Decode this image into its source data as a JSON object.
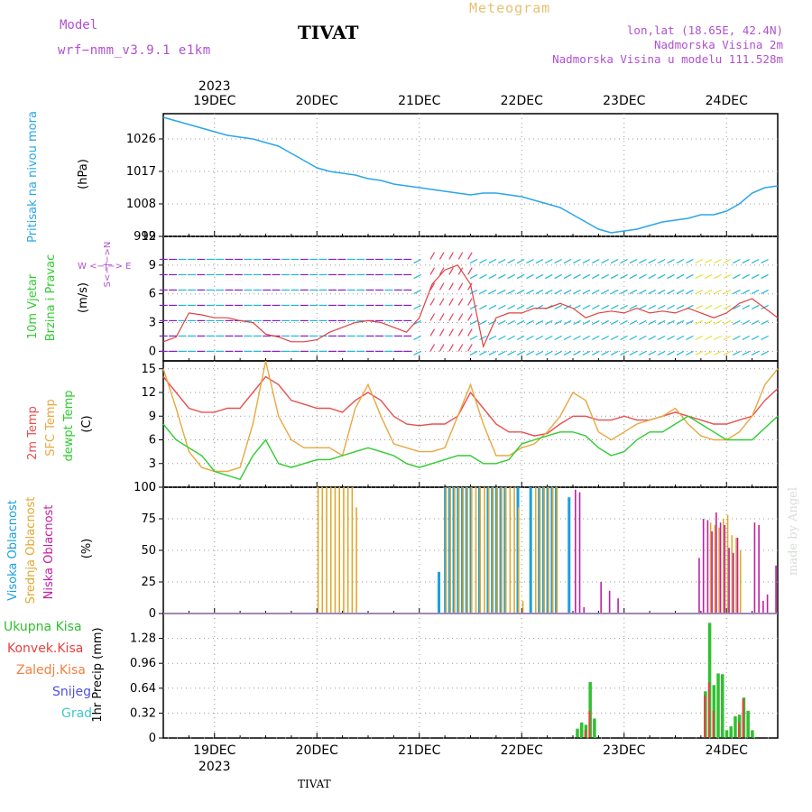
{
  "header": {
    "model_label": "Model",
    "model_name": "wrf−nmm_v3.9.1  e1km",
    "title": "TIVAT",
    "meteogram": "Meteogram",
    "lonlat": "lon,lat (18.65E, 42.4N)",
    "elevation": "Nadmorska Visina 2m",
    "model_elevation": "Nadmorska Visina u modelu 111.528m"
  },
  "footer": {
    "title": "TIVAT",
    "credit": "made by Angel"
  },
  "time_axis": {
    "year": "2023",
    "days": [
      "19DEC",
      "20DEC",
      "21DEC",
      "22DEC",
      "23DEC",
      "24DEC"
    ],
    "range_hours": [
      0,
      144
    ]
  },
  "colors": {
    "pressure": "#2aa6e8",
    "temp2m": "#e85050",
    "sfc": "#e8a840",
    "dew": "#30cc30",
    "cloud_high": "#1aa0e0",
    "cloud_mid": "#e0a830",
    "cloud_low": "#c020a0",
    "precip_total": "#30c030",
    "precip_conv": "#e84040",
    "precip_frozen": "#f08040",
    "snow": "#5050e0",
    "graupel": "#40c8c8"
  },
  "chart_data": [
    {
      "type": "line",
      "panel": "pressure",
      "ylabel": [
        "Pritisak na nivou mora",
        "(hPa)"
      ],
      "ylim": [
        999,
        1033
      ],
      "yticks": [
        "999",
        "1008",
        "1017",
        "1026"
      ],
      "x": [
        0,
        3,
        6,
        9,
        12,
        15,
        18,
        21,
        24,
        27,
        30,
        33,
        36,
        39,
        42,
        45,
        48,
        51,
        54,
        57,
        60,
        63,
        66,
        69,
        72,
        75,
        78,
        81,
        84,
        87,
        90,
        93,
        96,
        99,
        102,
        105,
        108,
        111,
        114,
        117,
        120,
        123,
        126,
        129,
        132,
        135,
        138,
        141,
        144
      ],
      "series": [
        {
          "values": [
            1032,
            1031,
            1030,
            1029,
            1028,
            1027,
            1026.5,
            1026,
            1025,
            1024,
            1022,
            1020,
            1018,
            1017,
            1016.5,
            1016,
            1015,
            1014.5,
            1013.5,
            1013,
            1012.5,
            1012,
            1011.5,
            1011,
            1010.5,
            1011,
            1011,
            1010.5,
            1010,
            1009,
            1008,
            1007,
            1005,
            1003,
            1001,
            1000,
            1000.5,
            1001,
            1002,
            1003,
            1003.5,
            1004,
            1005,
            1005,
            1006,
            1008,
            1011,
            1012.5,
            1013
          ]
        }
      ]
    },
    {
      "type": "line",
      "panel": "wind",
      "ylabel": [
        "10m Vjetar",
        "Brzina i Pravac",
        "(m/s)"
      ],
      "direction_legend": "W <−|−> E",
      "direction_legend_v": "S<−|−>N",
      "ylim": [
        -1,
        12
      ],
      "yticks": [
        "0",
        "3",
        "6",
        "9",
        "12"
      ],
      "x": [
        0,
        3,
        6,
        9,
        12,
        15,
        18,
        21,
        24,
        27,
        30,
        33,
        36,
        39,
        42,
        45,
        48,
        51,
        54,
        57,
        60,
        63,
        66,
        69,
        72,
        75,
        78,
        81,
        84,
        87,
        90,
        93,
        96,
        99,
        102,
        105,
        108,
        111,
        114,
        117,
        120,
        123,
        126,
        129,
        132,
        135,
        138,
        141,
        144
      ],
      "series": [
        {
          "values": [
            1,
            1.5,
            4,
            3.8,
            3.5,
            3.5,
            3.2,
            3,
            1.8,
            1.5,
            1,
            1,
            1.2,
            2,
            2.5,
            3,
            3.2,
            3,
            2.5,
            2,
            3.5,
            7,
            8.5,
            9,
            7,
            0.5,
            3.5,
            4,
            4,
            4.5,
            4.5,
            5,
            4.5,
            3.5,
            4,
            4.2,
            4,
            4.5,
            4,
            4.2,
            4,
            4.5,
            4,
            3.5,
            4,
            5,
            5.5,
            4.5,
            3.5
          ]
        }
      ]
    },
    {
      "type": "line",
      "panel": "temperature",
      "ylabel": [
        "2m Temp",
        "SFC Temp",
        "dewpt Temp",
        "(C)"
      ],
      "ylim": [
        0,
        16
      ],
      "yticks": [
        "0",
        "3",
        "6",
        "9",
        "12",
        "15"
      ],
      "x": [
        0,
        3,
        6,
        9,
        12,
        15,
        18,
        21,
        24,
        27,
        30,
        33,
        36,
        39,
        42,
        45,
        48,
        51,
        54,
        57,
        60,
        63,
        66,
        69,
        72,
        75,
        78,
        81,
        84,
        87,
        90,
        93,
        96,
        99,
        102,
        105,
        108,
        111,
        114,
        117,
        120,
        123,
        126,
        129,
        132,
        135,
        138,
        141,
        144
      ],
      "series": [
        {
          "name": "2m Temp",
          "values": [
            14,
            12,
            10,
            9.5,
            9.5,
            10,
            10,
            12,
            14,
            13,
            11,
            10.5,
            10,
            10,
            9.5,
            11,
            12,
            11,
            9,
            8,
            7.8,
            8,
            8,
            9,
            12,
            10,
            8,
            7,
            7,
            6.5,
            6.8,
            8,
            9,
            9,
            8.5,
            8.5,
            9,
            8.5,
            8.5,
            9,
            9.5,
            9,
            8.5,
            8,
            8,
            8.5,
            9,
            11,
            12.5
          ]
        },
        {
          "name": "SFC Temp",
          "values": [
            15,
            10,
            4.5,
            2.5,
            2,
            2,
            2.5,
            8,
            16,
            9,
            6,
            5,
            5,
            5,
            4,
            10,
            13,
            9,
            5.5,
            5,
            4.5,
            4.5,
            5,
            9,
            13,
            8,
            4,
            4,
            5,
            5.5,
            7,
            9,
            12,
            11,
            7,
            6,
            7,
            8,
            8.5,
            9,
            10,
            8,
            6.5,
            6,
            6,
            7,
            9,
            13,
            15
          ]
        },
        {
          "name": "dewpt Temp",
          "values": [
            8,
            6,
            5,
            4,
            2,
            1.5,
            1,
            4,
            6,
            3,
            2.5,
            3,
            3.5,
            3.5,
            4,
            4.5,
            5,
            4.5,
            4,
            3,
            2.5,
            3,
            3.5,
            4,
            4,
            3,
            3,
            3.5,
            5.5,
            6,
            6.5,
            7,
            7,
            6.5,
            5,
            4,
            4.5,
            6,
            7,
            7,
            8,
            9,
            8,
            7,
            6,
            6,
            6,
            7.5,
            9
          ]
        }
      ]
    },
    {
      "type": "bar",
      "panel": "clouds",
      "ylabel": [
        "Visoka Oblacnost",
        "Srednja Oblacnost",
        "Niska Oblacnost",
        "(%)"
      ],
      "ylim": [
        0,
        100
      ],
      "yticks": [
        "0",
        "25",
        "50",
        "75",
        "100"
      ],
      "series": [
        {
          "name": "Visoka Oblacnost",
          "x": [
            64.5,
            66,
            67,
            68,
            69,
            70,
            71,
            72,
            74,
            76,
            77,
            78,
            79,
            80,
            83,
            86,
            88,
            89,
            90,
            91,
            92,
            95
          ],
          "values": [
            33,
            100,
            100,
            100,
            100,
            100,
            100,
            100,
            100,
            100,
            100,
            100,
            100,
            100,
            100,
            100,
            100,
            100,
            100,
            100,
            100,
            92
          ]
        },
        {
          "name": "Srednja Oblacnost",
          "x": [
            36,
            37,
            38,
            39,
            40,
            41,
            42,
            43,
            44,
            45,
            66,
            67,
            68,
            69,
            70,
            71,
            72,
            73,
            74,
            75,
            76,
            77,
            78,
            79,
            80,
            81,
            82,
            83,
            84,
            87,
            88,
            89,
            90,
            91,
            92,
            128,
            129,
            130,
            131,
            132,
            133,
            134,
            135
          ],
          "values": [
            100,
            100,
            100,
            100,
            100,
            100,
            100,
            100,
            100,
            84,
            100,
            100,
            100,
            100,
            100,
            100,
            100,
            100,
            100,
            100,
            100,
            100,
            100,
            100,
            100,
            100,
            100,
            84,
            10,
            100,
            100,
            100,
            100,
            100,
            100,
            72,
            70,
            68,
            75,
            78,
            62,
            60,
            50
          ]
        },
        {
          "name": "Niska Oblacnost",
          "x": [
            96,
            97,
            98,
            102,
            104,
            106,
            125,
            126,
            127,
            128,
            129,
            130,
            131,
            132,
            133,
            134,
            138,
            139,
            140,
            141,
            142,
            143,
            144
          ],
          "values": [
            98,
            96,
            5,
            25,
            18,
            12,
            44,
            75,
            74,
            65,
            80,
            72,
            70,
            52,
            48,
            60,
            72,
            70,
            10,
            15,
            0,
            38,
            0
          ]
        }
      ]
    },
    {
      "type": "bar",
      "panel": "precipitation",
      "ylabel": [
        "Ukupna Kisa",
        "Konvek.Kisa",
        "Zaledj.Kisa",
        "Snijeg",
        "Grad",
        "1hr Precip (mm)"
      ],
      "ylim": [
        0,
        1.6
      ],
      "yticks": [
        "0",
        "0.32",
        "0.64",
        "0.96",
        "1.28"
      ],
      "series": [
        {
          "name": "Ukupna Kisa",
          "x": [
            97,
            98,
            99,
            100,
            101,
            102,
            127,
            128,
            129,
            130,
            131,
            132,
            133,
            134,
            135,
            136,
            137,
            138
          ],
          "values": [
            0.12,
            0.2,
            0.17,
            0.72,
            0.25,
            0.0,
            0.6,
            1.48,
            0.68,
            0.83,
            0.82,
            0.1,
            0.15,
            0.28,
            0.3,
            0.52,
            0.35,
            0.1
          ]
        },
        {
          "name": "Konvek.Kisa",
          "x": [
            99,
            100,
            127,
            128,
            129,
            135,
            136
          ],
          "values": [
            0.1,
            0.35,
            0.55,
            0.72,
            0.35,
            0.2,
            0.5
          ]
        }
      ]
    }
  ]
}
